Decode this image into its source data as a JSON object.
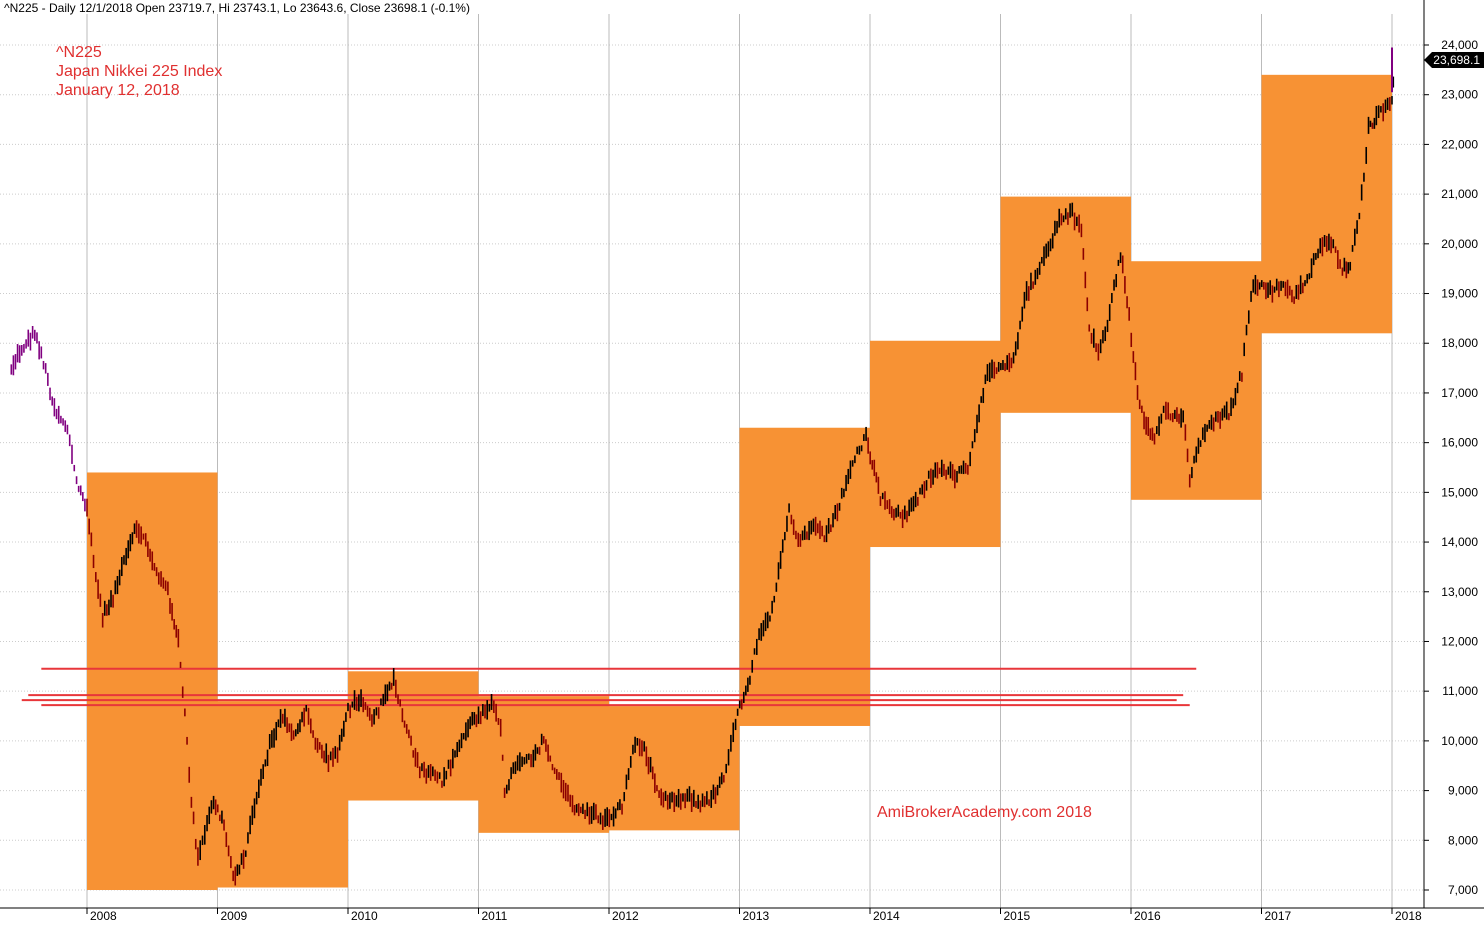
{
  "header": "^N225 - Daily 12/1/2018 Open 23719.7, Hi 23743.1, Lo 23643.6, Close 23698.1 (-0.1%)",
  "notes": [
    "^N225",
    "Japan Nikkei 225 Index",
    "January 12, 2018"
  ],
  "watermark": "AmiBrokerAcademy.com  2018",
  "last_price_label": "23,698.1",
  "colors": {
    "box": "#f79234",
    "hline": "#e8363a",
    "price_up": "#000000",
    "price_down": "#8b0000",
    "price_early": "#800080",
    "note_text": "#e03030"
  },
  "chart_data": {
    "type": "line",
    "ylim": [
      6750,
      24300
    ],
    "xlim": [
      2007.42,
      2018.1
    ],
    "y_ticks": [
      7000,
      8000,
      9000,
      10000,
      11000,
      12000,
      13000,
      14000,
      15000,
      16000,
      17000,
      18000,
      19000,
      20000,
      21000,
      22000,
      23000,
      24000
    ],
    "y_tick_labels": [
      "7,000",
      "8,000",
      "9,000",
      "10,000",
      "11,000",
      "12,000",
      "13,000",
      "14,000",
      "15,000",
      "16,000",
      "17,000",
      "18,000",
      "19,000",
      "20,000",
      "21,000",
      "22,000",
      "23,000",
      "24,000"
    ],
    "x_ticks": [
      2008,
      2009,
      2010,
      2011,
      2012,
      2013,
      2014,
      2015,
      2016,
      2017,
      2018
    ],
    "x_tick_labels": [
      "2008",
      "2009",
      "2010",
      "2011",
      "2012",
      "2013",
      "2014",
      "2015",
      "2016",
      "2017",
      "2018"
    ],
    "grid": true,
    "yearly_ranges": [
      {
        "year": 2008,
        "low": 7000,
        "high": 15400
      },
      {
        "year": 2009,
        "low": 7050,
        "high": 10800
      },
      {
        "year": 2010,
        "low": 8800,
        "high": 11400
      },
      {
        "year": 2011,
        "low": 8150,
        "high": 10900
      },
      {
        "year": 2012,
        "low": 8200,
        "high": 10700
      },
      {
        "year": 2013,
        "low": 10300,
        "high": 16300
      },
      {
        "year": 2014,
        "low": 13900,
        "high": 18050
      },
      {
        "year": 2015,
        "low": 16600,
        "high": 20950
      },
      {
        "year": 2016,
        "low": 14850,
        "high": 19650
      },
      {
        "year": 2017,
        "low": 18200,
        "high": 23400
      }
    ],
    "horizontal_lines": [
      {
        "y": 11450,
        "x_from": 2007.65,
        "x_to": 2016.5
      },
      {
        "y": 10920,
        "x_from": 2007.55,
        "x_to": 2016.4
      },
      {
        "y": 10820,
        "x_from": 2007.5,
        "x_to": 2016.35
      },
      {
        "y": 10720,
        "x_from": 2007.65,
        "x_to": 2016.45
      }
    ],
    "series": [
      {
        "x": [
          2007.42,
          2007.5,
          2007.6,
          2007.65,
          2007.75,
          2007.85,
          2007.92,
          2008.0,
          2008.05,
          2008.12,
          2008.2,
          2008.3,
          2008.38,
          2008.45,
          2008.55,
          2008.62,
          2008.7,
          2008.75,
          2008.8,
          2008.85,
          2008.92,
          2008.97,
          2009.05,
          2009.12,
          2009.2,
          2009.3,
          2009.4,
          2009.5,
          2009.6,
          2009.68,
          2009.75,
          2009.85,
          2009.92,
          2010.0,
          2010.1,
          2010.2,
          2010.27,
          2010.35,
          2010.45,
          2010.55,
          2010.65,
          2010.72,
          2010.82,
          2010.92,
          2011.0,
          2011.1,
          2011.17,
          2011.2,
          2011.3,
          2011.42,
          2011.5,
          2011.6,
          2011.72,
          2011.8,
          2011.9,
          2011.97,
          2012.1,
          2012.2,
          2012.27,
          2012.4,
          2012.5,
          2012.6,
          2012.7,
          2012.8,
          2012.88,
          2012.97,
          2013.08,
          2013.15,
          2013.25,
          2013.38,
          2013.45,
          2013.55,
          2013.65,
          2013.75,
          2013.85,
          2013.97,
          2014.08,
          2014.15,
          2014.25,
          2014.35,
          2014.45,
          2014.55,
          2014.65,
          2014.75,
          2014.82,
          2014.9,
          2014.97,
          2015.1,
          2015.2,
          2015.3,
          2015.4,
          2015.45,
          2015.55,
          2015.62,
          2015.68,
          2015.75,
          2015.82,
          2015.92,
          2015.97,
          2016.05,
          2016.1,
          2016.18,
          2016.25,
          2016.32,
          2016.4,
          2016.45,
          2016.55,
          2016.65,
          2016.75,
          2016.85,
          2016.92,
          2016.97,
          2017.05,
          2017.15,
          2017.25,
          2017.35,
          2017.45,
          2017.55,
          2017.62,
          2017.68,
          2017.75,
          2017.82,
          2017.88,
          2017.95,
          2018.0,
          2018.02
        ],
        "values": [
          17500,
          17900,
          18200,
          17800,
          16700,
          16300,
          15200,
          14700,
          13600,
          12500,
          12900,
          13700,
          14300,
          14000,
          13300,
          13000,
          12000,
          10500,
          8800,
          7600,
          8300,
          8800,
          8300,
          7300,
          7600,
          8900,
          9900,
          10500,
          10100,
          10600,
          10000,
          9600,
          9800,
          10600,
          10900,
          10400,
          10900,
          11200,
          10200,
          9400,
          9300,
          9200,
          9700,
          10300,
          10500,
          10800,
          10200,
          9000,
          9600,
          9700,
          10000,
          9300,
          8700,
          8600,
          8500,
          8400,
          8700,
          10000,
          9800,
          8900,
          8800,
          8900,
          8700,
          8900,
          9300,
          10400,
          11300,
          12200,
          12600,
          14600,
          14000,
          14300,
          14100,
          14600,
          15500,
          16100,
          14900,
          14700,
          14500,
          14800,
          15300,
          15500,
          15300,
          15500,
          16300,
          17500,
          17500,
          17700,
          19000,
          19500,
          20100,
          20500,
          20600,
          20300,
          18300,
          17800,
          18400,
          19800,
          18900,
          17000,
          16400,
          16000,
          16700,
          16500,
          16600,
          15300,
          16200,
          16500,
          16600,
          17400,
          19000,
          19200,
          19000,
          19200,
          18900,
          19300,
          20000,
          20000,
          19500,
          19600,
          20500,
          22300,
          22500,
          22800,
          22800,
          23698
        ]
      }
    ]
  }
}
